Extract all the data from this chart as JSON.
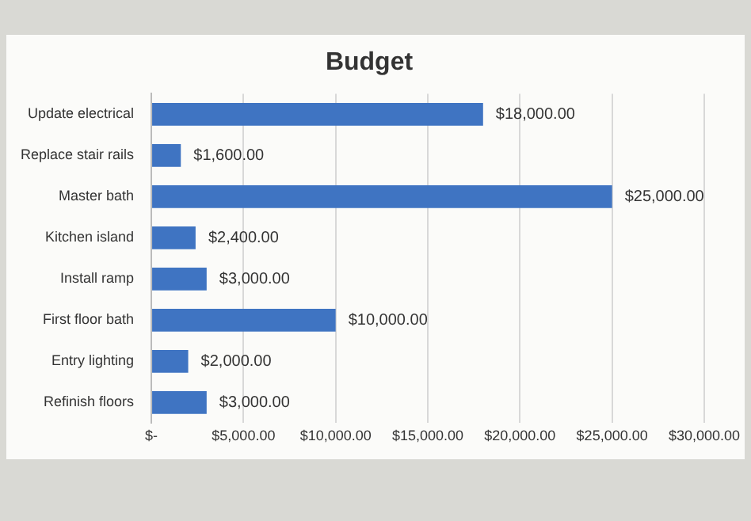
{
  "chart_data": {
    "type": "bar",
    "orientation": "horizontal",
    "title": "Budget",
    "categories": [
      "Update electrical",
      "Replace stair rails",
      "Master bath",
      "Kitchen island",
      "Install ramp",
      "First floor bath",
      "Entry lighting",
      "Refinish floors"
    ],
    "values": [
      18000,
      1600,
      25000,
      2400,
      3000,
      10000,
      2000,
      3000
    ],
    "value_labels": [
      "$18,000.00",
      "$1,600.00",
      "$25,000.00",
      "$2,400.00",
      "$3,000.00",
      "$10,000.00",
      "$2,000.00",
      "$3,000.00"
    ],
    "color": "#3f74c2",
    "xlim": [
      0,
      30000
    ],
    "xticks": [
      {
        "value": 0,
        "label": "$-"
      },
      {
        "value": 5000,
        "label": "$5,000.00"
      },
      {
        "value": 10000,
        "label": "$10,000.00"
      },
      {
        "value": 15000,
        "label": "$15,000.00"
      },
      {
        "value": 20000,
        "label": "$20,000.00"
      },
      {
        "value": 25000,
        "label": "$25,000.00"
      },
      {
        "value": 30000,
        "label": "$30,000.00"
      }
    ],
    "grid": "x",
    "legend": false
  }
}
